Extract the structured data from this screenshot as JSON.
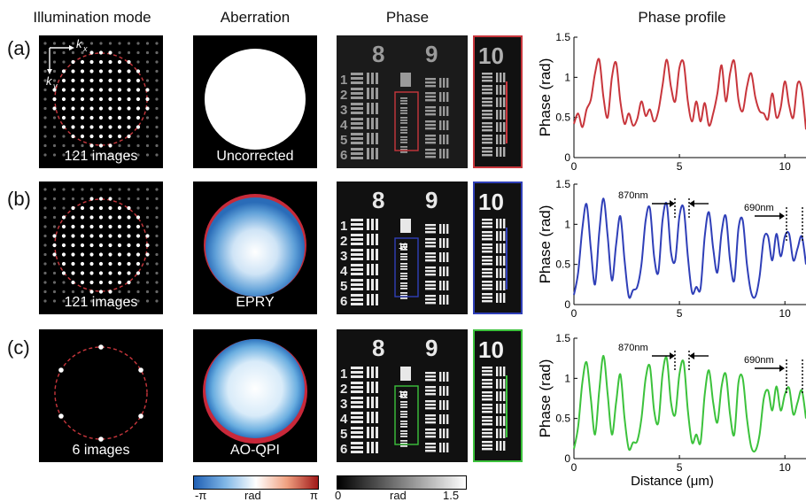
{
  "headers": {
    "illumination": "Illumination mode",
    "aberration": "Aberration",
    "phase": "Phase",
    "profile": "Phase profile"
  },
  "rows": [
    {
      "label": "(a)",
      "images": "121 images",
      "method": "Uncorrected",
      "color": "#c8363c"
    },
    {
      "label": "(b)",
      "images": "121 images",
      "method": "EPRY",
      "color": "#2f3fb8"
    },
    {
      "label": "(c)",
      "images": "6 images",
      "method": "AO-QPI",
      "color": "#3cc23c"
    }
  ],
  "kspace": {
    "kx": "k",
    "kx_sub": "x",
    "ky": "k",
    "ky_sub": "y"
  },
  "usaf": {
    "group_left": "8",
    "group_right": "9",
    "element_small": "10"
  },
  "colorbars": {
    "aberration": {
      "min": "-π",
      "mid": "rad",
      "max": "π"
    },
    "phase": {
      "min": "0",
      "mid": "rad",
      "max": "1.5"
    }
  },
  "annotations": {
    "w1": "870nm",
    "w2": "690nm"
  },
  "chart_data": [
    {
      "type": "line",
      "title": "",
      "xlabel": "",
      "ylabel": "Phase (rad)",
      "xlim": [
        0,
        11
      ],
      "ylim": [
        0,
        1.5
      ],
      "xticks": [
        0,
        5,
        10
      ],
      "yticks": [
        0,
        0.5,
        1,
        1.5
      ],
      "series": [
        {
          "color": "#c8363c",
          "x": [
            0,
            0.2,
            0.4,
            0.6,
            0.8,
            1.0,
            1.2,
            1.4,
            1.6,
            1.8,
            2.0,
            2.2,
            2.4,
            2.6,
            2.8,
            3.0,
            3.2,
            3.4,
            3.6,
            3.8,
            4.0,
            4.2,
            4.4,
            4.6,
            4.8,
            5.0,
            5.2,
            5.4,
            5.6,
            5.8,
            6.0,
            6.2,
            6.4,
            6.6,
            6.8,
            7.0,
            7.2,
            7.4,
            7.6,
            7.8,
            8.0,
            8.2,
            8.4,
            8.6,
            8.8,
            9.0,
            9.2,
            9.4,
            9.6,
            9.8,
            10.0,
            10.2,
            10.4,
            10.6,
            10.8,
            11.0
          ],
          "y": [
            0.42,
            0.55,
            0.38,
            0.6,
            0.72,
            1.05,
            1.22,
            0.75,
            0.5,
            1.0,
            1.18,
            0.7,
            0.42,
            0.55,
            0.4,
            0.48,
            0.7,
            0.52,
            0.6,
            0.45,
            0.58,
            0.9,
            1.22,
            0.88,
            0.7,
            1.12,
            1.18,
            0.7,
            0.45,
            0.7,
            0.45,
            0.68,
            0.4,
            0.55,
            0.8,
            1.15,
            0.7,
            1.05,
            1.2,
            0.72,
            0.58,
            0.88,
            1.05,
            0.75,
            0.58,
            0.55,
            0.48,
            0.8,
            0.5,
            0.62,
            0.95,
            0.65,
            0.5,
            0.92,
            0.85,
            0.35
          ]
        }
      ]
    },
    {
      "type": "line",
      "title": "",
      "xlabel": "",
      "ylabel": "Phase (rad)",
      "xlim": [
        0,
        11
      ],
      "ylim": [
        0,
        1.5
      ],
      "xticks": [
        0,
        5,
        10
      ],
      "yticks": [
        0,
        0.5,
        1,
        1.5
      ],
      "series": [
        {
          "color": "#2f3fb8",
          "x": [
            0,
            0.2,
            0.4,
            0.6,
            0.8,
            1.0,
            1.2,
            1.4,
            1.6,
            1.8,
            2.0,
            2.2,
            2.4,
            2.6,
            2.8,
            3.0,
            3.2,
            3.4,
            3.6,
            3.8,
            4.0,
            4.2,
            4.4,
            4.6,
            4.8,
            5.0,
            5.2,
            5.4,
            5.6,
            5.8,
            6.0,
            6.2,
            6.4,
            6.6,
            6.8,
            7.0,
            7.2,
            7.4,
            7.6,
            7.8,
            8.0,
            8.2,
            8.4,
            8.6,
            8.8,
            9.0,
            9.2,
            9.4,
            9.6,
            9.8,
            10.0,
            10.2,
            10.4,
            10.6,
            10.8,
            11.0
          ],
          "y": [
            0.12,
            0.4,
            0.95,
            1.25,
            0.7,
            0.25,
            0.9,
            1.32,
            0.85,
            0.3,
            0.75,
            1.1,
            0.55,
            0.1,
            0.18,
            0.22,
            0.5,
            1.05,
            1.2,
            0.6,
            0.4,
            1.05,
            1.25,
            0.65,
            0.55,
            1.1,
            1.2,
            0.6,
            0.15,
            0.22,
            0.2,
            0.85,
            1.15,
            0.7,
            0.4,
            0.9,
            1.1,
            0.55,
            0.3,
            0.95,
            1.05,
            0.5,
            0.15,
            0.1,
            0.35,
            0.82,
            0.85,
            0.55,
            0.88,
            0.6,
            0.85,
            0.88,
            0.55,
            0.7,
            0.85,
            0.5
          ]
        }
      ]
    },
    {
      "type": "line",
      "title": "",
      "xlabel": "Distance (μm)",
      "ylabel": "Phase (rad)",
      "xlim": [
        0,
        11
      ],
      "ylim": [
        0,
        1.5
      ],
      "xticks": [
        0,
        5,
        10
      ],
      "yticks": [
        0,
        0.5,
        1,
        1.5
      ],
      "series": [
        {
          "color": "#3cc23c",
          "x": [
            0,
            0.2,
            0.4,
            0.6,
            0.8,
            1.0,
            1.2,
            1.4,
            1.6,
            1.8,
            2.0,
            2.2,
            2.4,
            2.6,
            2.8,
            3.0,
            3.2,
            3.4,
            3.6,
            3.8,
            4.0,
            4.2,
            4.4,
            4.6,
            4.8,
            5.0,
            5.2,
            5.4,
            5.6,
            5.8,
            6.0,
            6.2,
            6.4,
            6.6,
            6.8,
            7.0,
            7.2,
            7.4,
            7.6,
            7.8,
            8.0,
            8.2,
            8.4,
            8.6,
            8.8,
            9.0,
            9.2,
            9.4,
            9.6,
            9.8,
            10.0,
            10.2,
            10.4,
            10.6,
            10.8,
            11.0
          ],
          "y": [
            0.12,
            0.4,
            0.95,
            1.2,
            0.75,
            0.3,
            0.85,
            1.28,
            0.8,
            0.3,
            0.7,
            1.05,
            0.5,
            0.12,
            0.2,
            0.22,
            0.5,
            1.0,
            1.15,
            0.6,
            0.45,
            1.05,
            1.25,
            0.7,
            0.55,
            1.05,
            1.2,
            0.6,
            0.2,
            0.3,
            0.2,
            0.8,
            1.1,
            0.7,
            0.45,
            0.9,
            1.05,
            0.55,
            0.3,
            0.95,
            1.0,
            0.5,
            0.15,
            0.1,
            0.3,
            0.75,
            0.85,
            0.6,
            0.9,
            0.6,
            0.8,
            0.88,
            0.55,
            0.7,
            0.85,
            0.5
          ]
        }
      ]
    }
  ]
}
